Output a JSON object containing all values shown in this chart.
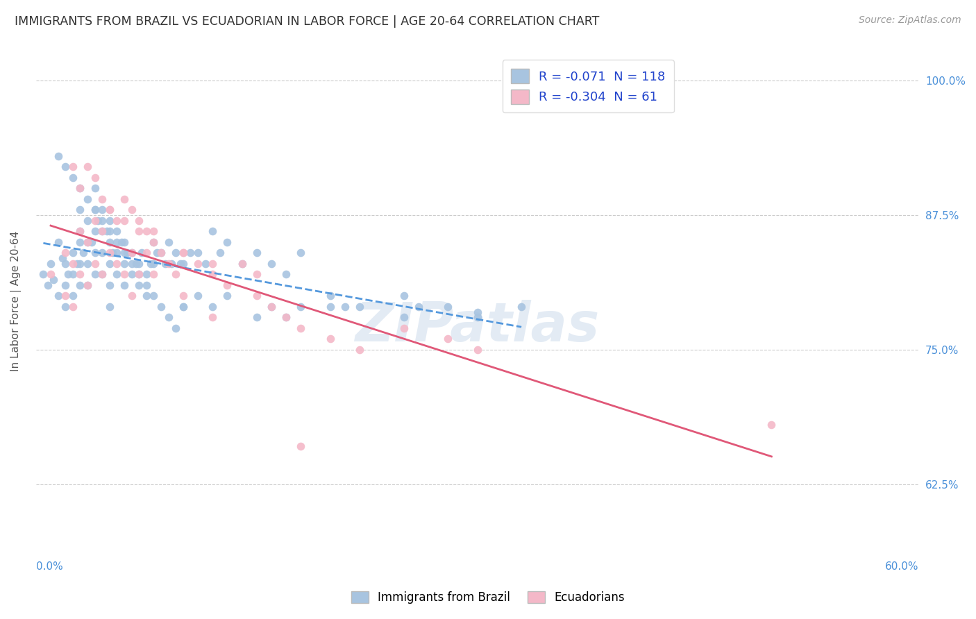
{
  "title": "IMMIGRANTS FROM BRAZIL VS ECUADORIAN IN LABOR FORCE | AGE 20-64 CORRELATION CHART",
  "source": "Source: ZipAtlas.com",
  "ylabel": "In Labor Force | Age 20-64",
  "ytick_labels": [
    "100.0%",
    "87.5%",
    "75.0%",
    "62.5%"
  ],
  "ytick_values": [
    1.0,
    0.875,
    0.75,
    0.625
  ],
  "xlim": [
    0.0,
    0.6
  ],
  "ylim": [
    0.565,
    1.025
  ],
  "brazil_color": "#a8c4e0",
  "ecuador_color": "#f4b8c8",
  "brazil_line_color": "#5599dd",
  "ecuador_line_color": "#e05878",
  "watermark": "ZIPatlas",
  "title_color": "#333333",
  "right_label_color": "#4a90d9",
  "brazil_R": -0.071,
  "brazil_N": 118,
  "ecuador_R": -0.304,
  "ecuador_N": 61,
  "brazil_scatter_x": [
    0.005,
    0.008,
    0.01,
    0.012,
    0.015,
    0.015,
    0.018,
    0.02,
    0.02,
    0.02,
    0.022,
    0.025,
    0.025,
    0.025,
    0.028,
    0.03,
    0.03,
    0.03,
    0.03,
    0.03,
    0.032,
    0.035,
    0.035,
    0.035,
    0.035,
    0.038,
    0.04,
    0.04,
    0.04,
    0.04,
    0.04,
    0.042,
    0.045,
    0.045,
    0.045,
    0.045,
    0.048,
    0.05,
    0.05,
    0.05,
    0.05,
    0.05,
    0.052,
    0.055,
    0.055,
    0.055,
    0.058,
    0.06,
    0.06,
    0.06,
    0.062,
    0.065,
    0.065,
    0.068,
    0.07,
    0.07,
    0.072,
    0.075,
    0.075,
    0.078,
    0.08,
    0.08,
    0.082,
    0.085,
    0.088,
    0.09,
    0.092,
    0.095,
    0.098,
    0.1,
    0.1,
    0.105,
    0.11,
    0.115,
    0.12,
    0.125,
    0.13,
    0.14,
    0.15,
    0.16,
    0.17,
    0.18,
    0.2,
    0.21,
    0.22,
    0.25,
    0.26,
    0.28,
    0.3,
    0.33,
    0.015,
    0.02,
    0.025,
    0.03,
    0.035,
    0.04,
    0.045,
    0.05,
    0.055,
    0.06,
    0.065,
    0.07,
    0.075,
    0.08,
    0.085,
    0.09,
    0.095,
    0.1,
    0.11,
    0.12,
    0.13,
    0.15,
    0.16,
    0.17,
    0.18,
    0.2,
    0.25,
    0.3
  ],
  "brazil_scatter_y": [
    0.82,
    0.81,
    0.83,
    0.815,
    0.8,
    0.85,
    0.835,
    0.83,
    0.81,
    0.79,
    0.82,
    0.84,
    0.82,
    0.8,
    0.83,
    0.88,
    0.86,
    0.85,
    0.83,
    0.81,
    0.84,
    0.87,
    0.85,
    0.83,
    0.81,
    0.85,
    0.9,
    0.88,
    0.86,
    0.84,
    0.82,
    0.87,
    0.88,
    0.86,
    0.84,
    0.82,
    0.86,
    0.87,
    0.85,
    0.83,
    0.81,
    0.79,
    0.84,
    0.86,
    0.84,
    0.82,
    0.85,
    0.85,
    0.83,
    0.81,
    0.84,
    0.84,
    0.82,
    0.83,
    0.83,
    0.81,
    0.84,
    0.82,
    0.8,
    0.83,
    0.85,
    0.83,
    0.84,
    0.84,
    0.83,
    0.85,
    0.83,
    0.84,
    0.83,
    0.83,
    0.79,
    0.84,
    0.84,
    0.83,
    0.86,
    0.84,
    0.85,
    0.83,
    0.84,
    0.83,
    0.82,
    0.84,
    0.8,
    0.79,
    0.79,
    0.8,
    0.79,
    0.79,
    0.78,
    0.79,
    0.93,
    0.92,
    0.91,
    0.9,
    0.89,
    0.88,
    0.87,
    0.86,
    0.85,
    0.84,
    0.83,
    0.82,
    0.81,
    0.8,
    0.79,
    0.78,
    0.77,
    0.79,
    0.8,
    0.79,
    0.8,
    0.78,
    0.79,
    0.78,
    0.79,
    0.79,
    0.78,
    0.785
  ],
  "ecuador_scatter_x": [
    0.01,
    0.02,
    0.02,
    0.025,
    0.025,
    0.03,
    0.03,
    0.035,
    0.035,
    0.04,
    0.04,
    0.045,
    0.045,
    0.05,
    0.05,
    0.055,
    0.06,
    0.06,
    0.065,
    0.065,
    0.07,
    0.07,
    0.075,
    0.08,
    0.08,
    0.085,
    0.09,
    0.095,
    0.1,
    0.1,
    0.11,
    0.12,
    0.12,
    0.13,
    0.14,
    0.15,
    0.16,
    0.17,
    0.18,
    0.2,
    0.22,
    0.25,
    0.28,
    0.3,
    0.5,
    0.025,
    0.03,
    0.035,
    0.04,
    0.045,
    0.05,
    0.055,
    0.06,
    0.065,
    0.07,
    0.075,
    0.08,
    0.1,
    0.12,
    0.15,
    0.18
  ],
  "ecuador_scatter_y": [
    0.82,
    0.84,
    0.8,
    0.83,
    0.79,
    0.86,
    0.82,
    0.85,
    0.81,
    0.87,
    0.83,
    0.86,
    0.82,
    0.88,
    0.84,
    0.83,
    0.87,
    0.82,
    0.84,
    0.8,
    0.86,
    0.82,
    0.84,
    0.86,
    0.82,
    0.84,
    0.83,
    0.82,
    0.84,
    0.8,
    0.83,
    0.82,
    0.78,
    0.81,
    0.83,
    0.8,
    0.79,
    0.78,
    0.77,
    0.76,
    0.75,
    0.77,
    0.76,
    0.75,
    0.68,
    0.92,
    0.9,
    0.92,
    0.91,
    0.89,
    0.88,
    0.87,
    0.89,
    0.88,
    0.87,
    0.86,
    0.85,
    0.84,
    0.83,
    0.82,
    0.66
  ]
}
